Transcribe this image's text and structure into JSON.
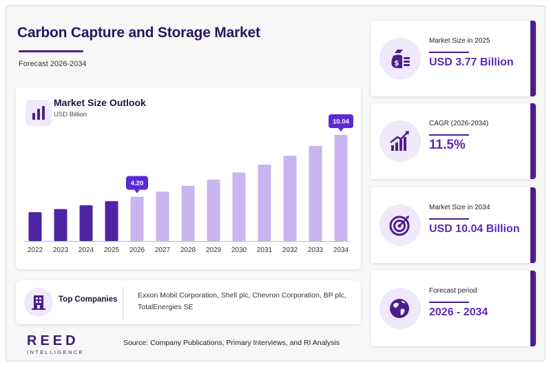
{
  "header": {
    "title": "Carbon Capture and Storage Market",
    "subtitle": "Forecast 2026-2034"
  },
  "chart_card": {
    "title": "Market Size Outlook",
    "unit": "USD Billion",
    "icon": "bar-chart-icon"
  },
  "chart_data": {
    "type": "bar",
    "categories": [
      "2022",
      "2023",
      "2024",
      "2025",
      "2026",
      "2027",
      "2028",
      "2029",
      "2030",
      "2031",
      "2032",
      "2033",
      "2034"
    ],
    "values": [
      2.73,
      3.02,
      3.38,
      3.77,
      4.2,
      4.68,
      5.22,
      5.82,
      6.49,
      7.24,
      8.07,
      9.0,
      10.04
    ],
    "historical_count": 4,
    "callouts": [
      {
        "index": 4,
        "label": "4.20"
      },
      {
        "index": 12,
        "label": "10.04"
      }
    ],
    "title": "Market Size Outlook",
    "ylabel": "USD Billion",
    "ylim": [
      0,
      10.04
    ],
    "grid": false,
    "colors": {
      "historical": "#4b25a3",
      "forecast": "#c9b5ef",
      "callout": "#5b2ad6"
    }
  },
  "companies": {
    "label": "Top Companies",
    "list": "Exxon Mobil Corporation, Shell plc, Chevron Corporation, BP plc, TotalEnergies SE",
    "icon": "building-icon"
  },
  "logo": {
    "word": "REED",
    "sub": "INTELLIGENCE"
  },
  "source": "Source: Company Publications, Primary Interviews, and RI Analysis",
  "kpis": [
    {
      "label": "Market Size in 2025",
      "value": "USD 3.77 Billion",
      "icon": "money-bag-icon"
    },
    {
      "label": "CAGR (2026-2034)",
      "value": "11.5%",
      "icon": "growth-chart-icon"
    },
    {
      "label": "Market Size in 2034",
      "value": "USD 10.04 Billion",
      "icon": "target-icon"
    },
    {
      "label": "Forecast period",
      "value": "2026 - 2034",
      "icon": "globe-icon"
    }
  ],
  "colors": {
    "brand": "#4a1e8c",
    "accent_value": "#5b2ab5",
    "icon_bg": "#f0e8fb",
    "title": "#2a1560"
  }
}
